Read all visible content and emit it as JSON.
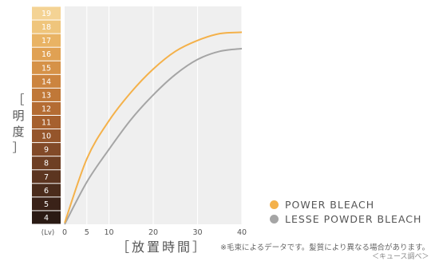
{
  "chart_data": {
    "type": "line",
    "ylabel": "［明度］",
    "ylabel_chars": [
      "［",
      "明",
      "度",
      "］"
    ],
    "xlabel": "［放置時間］",
    "x_ticks": [
      "0",
      "5",
      "10",
      "20",
      "30",
      "40"
    ],
    "x_unit_label": "(Lv)",
    "xlim": [
      0,
      40
    ],
    "levels": [
      "4",
      "5",
      "6",
      "7",
      "8",
      "9",
      "10",
      "11",
      "12",
      "13",
      "14",
      "15",
      "16",
      "17",
      "18",
      "19"
    ],
    "level_colors": [
      "#2a1a14",
      "#3a2218",
      "#4b2c1c",
      "#5c3520",
      "#6e3f24",
      "#824a28",
      "#95552b",
      "#a6602e",
      "#b46c33",
      "#c07838",
      "#cc843f",
      "#d69248",
      "#e0a153",
      "#e9b364",
      "#efc57c",
      "#f4d394"
    ],
    "ylim": [
      3.5,
      19.5
    ],
    "grid": true,
    "legend_position": "bottom-right",
    "series": [
      {
        "name": "POWER BLEACH",
        "color": "#f4b14a",
        "x": [
          0,
          5,
          10,
          15,
          20,
          25,
          30,
          35,
          40
        ],
        "y": [
          3.6,
          8.3,
          11.1,
          13.2,
          14.9,
          16.2,
          17.0,
          17.5,
          17.6
        ]
      },
      {
        "name": "LESSE POWDER BLEACH",
        "color": "#a5a5a5",
        "x": [
          0,
          5,
          10,
          15,
          20,
          25,
          30,
          35,
          40
        ],
        "y": [
          3.5,
          6.6,
          9.0,
          11.2,
          13.0,
          14.5,
          15.6,
          16.2,
          16.4
        ]
      }
    ]
  },
  "note": "※毛束によるデータです。髪質により異なる場合があります。",
  "note_sub": "＜キュース調べ＞"
}
